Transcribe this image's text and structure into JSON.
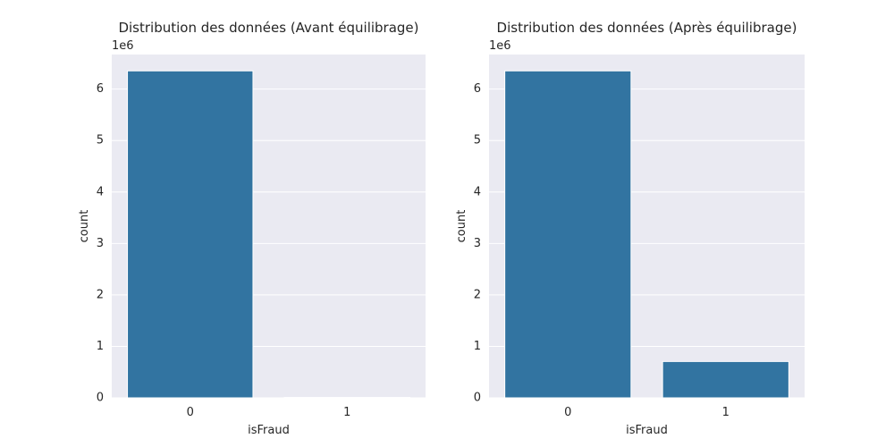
{
  "figure": {
    "background": "#ffffff",
    "plot_background": "#eaeaf2",
    "grid_color": "#ffffff",
    "bar_color": "#3274a1"
  },
  "chart_data": [
    {
      "type": "bar",
      "title": "Distribution des données (Avant équilibrage)",
      "xlabel": "isFraud",
      "ylabel": "count",
      "categories": [
        "0",
        "1"
      ],
      "values": [
        6354407,
        8213
      ],
      "ylim": [
        0,
        6672127
      ],
      "yticks": [
        0,
        1,
        2,
        3,
        4,
        5,
        6
      ],
      "ytick_scale": 1000000,
      "offset_label": "1e6",
      "grid": true,
      "legend": null
    },
    {
      "type": "bar",
      "title": "Distribution des données (Après équilibrage)",
      "xlabel": "isFraud",
      "ylabel": "count",
      "categories": [
        "0",
        "1"
      ],
      "values": [
        6354407,
        706000
      ],
      "ylim": [
        0,
        6672127
      ],
      "yticks": [
        0,
        1,
        2,
        3,
        4,
        5,
        6
      ],
      "ytick_scale": 1000000,
      "offset_label": "1e6",
      "grid": true,
      "legend": null
    }
  ]
}
